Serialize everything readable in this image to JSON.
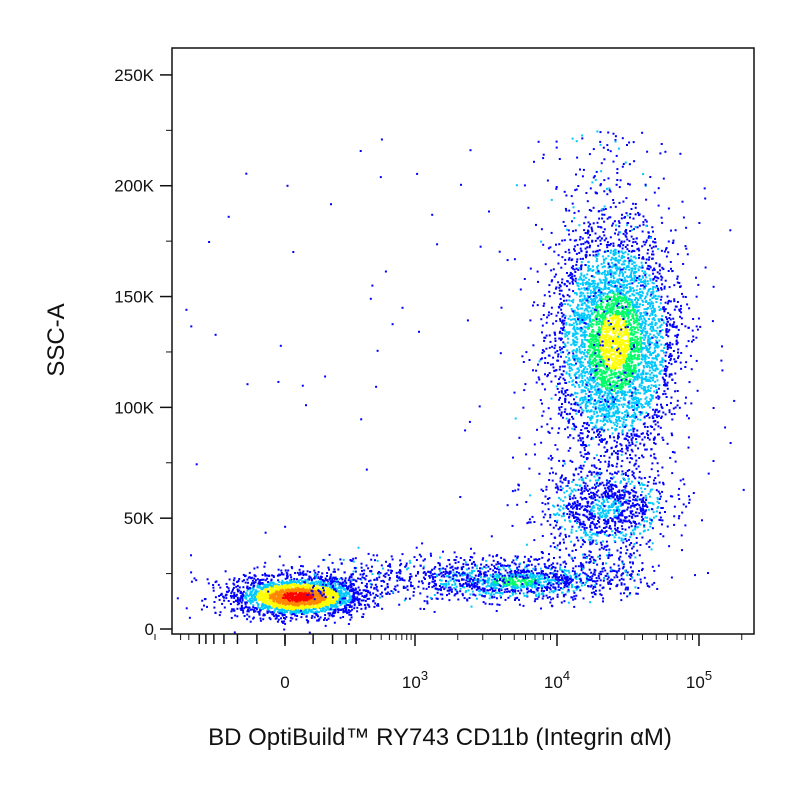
{
  "chart_data": {
    "type": "scatter",
    "subtype": "flow-cytometry-density-dot-plot",
    "title": "",
    "xlabel": "BD OptiBuild™ RY743 CD11b (Integrin αM)",
    "ylabel": "SSC-A",
    "x_scale": "biexponential",
    "x_tick_labels": [
      {
        "value": 0,
        "label": "0",
        "exp": ""
      },
      {
        "value": 1000,
        "label": "10",
        "exp": "3"
      },
      {
        "value": 10000,
        "label": "10",
        "exp": "4"
      },
      {
        "value": 100000,
        "label": "10",
        "exp": "5"
      }
    ],
    "y_ticks": [
      {
        "value": 0,
        "label": "0"
      },
      {
        "value": 50000,
        "label": "50K"
      },
      {
        "value": 100000,
        "label": "100K"
      },
      {
        "value": 150000,
        "label": "150K"
      },
      {
        "value": 200000,
        "label": "200K"
      },
      {
        "value": 250000,
        "label": "250K"
      }
    ],
    "ylim": [
      0,
      262144
    ],
    "xlim": [
      -300,
      262144
    ],
    "grid": false,
    "color_scale": [
      "#0000ff",
      "#00c8ff",
      "#00ff66",
      "#ffff00",
      "#ff8800",
      "#ff0000"
    ],
    "populations": [
      {
        "x_center": 20,
        "y_center": 15000,
        "x_spread": 130,
        "y_spread": 6000,
        "count": 2600,
        "peak": "#ff0000"
      },
      {
        "x_center": 5000,
        "y_center": 22000,
        "x_spread": 4000,
        "y_spread": 6000,
        "count": 900,
        "peak": "#00ff66"
      },
      {
        "x_center": 25000,
        "y_center": 130000,
        "x_spread": 14000,
        "y_spread": 45000,
        "count": 4200,
        "peak": "#ffff00"
      },
      {
        "x_center": 22000,
        "y_center": 55000,
        "x_spread": 12000,
        "y_spread": 18000,
        "count": 900,
        "peak": "#00c8ff"
      }
    ]
  }
}
